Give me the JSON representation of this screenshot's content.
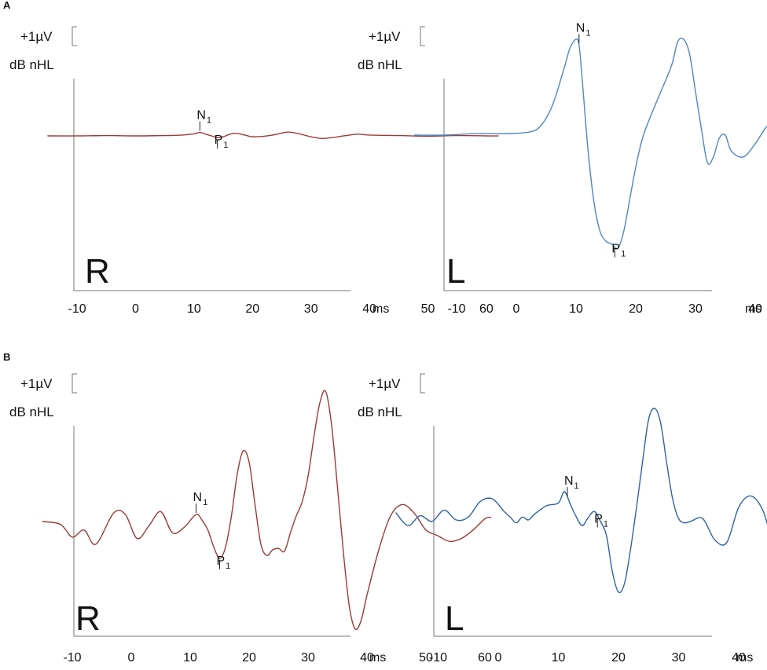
{
  "panel_labels": [
    "A",
    "B"
  ],
  "scale": {
    "amplitude": "+1µV",
    "level": "dB nHL"
  },
  "axis": {
    "ticks": [
      "-10",
      "0",
      "10",
      "20",
      "30",
      "40",
      "50",
      "60"
    ],
    "unit": "ms"
  },
  "colors": {
    "right_ear": "#9c3a36",
    "left_ear_A": "#4f86c6",
    "left_ear_B": "#2f62a8",
    "axis": "#777777"
  },
  "peaks": {
    "n_main": "N",
    "p_main": "P",
    "sub": "1"
  },
  "chart_data": [
    {
      "type": "line",
      "panel": "A",
      "ear": "R",
      "xlabel": "ms",
      "ylabel": "",
      "xlim": [
        -17,
        62
      ],
      "ylim": [
        -4.5,
        4.5
      ],
      "series": [
        {
          "ear": "R",
          "x": [
            -15,
            -10,
            -5,
            0,
            5,
            8,
            10,
            11,
            12,
            13,
            14,
            15,
            16,
            17,
            18,
            19,
            20,
            22,
            24,
            26,
            28,
            30,
            32,
            34,
            36,
            38,
            40,
            45,
            50,
            55,
            60,
            62
          ],
          "y": [
            0,
            0,
            0.02,
            0,
            0.02,
            0.05,
            0.12,
            0.2,
            0.1,
            0,
            -0.1,
            -0.05,
            0.08,
            0.15,
            0.1,
            0.02,
            -0.05,
            -0.02,
            0.08,
            0.22,
            0.12,
            -0.05,
            -0.15,
            -0.08,
            0.02,
            0.1,
            0.05,
            0.02,
            -0.02,
            0.02,
            0,
            0
          ]
        }
      ],
      "annotations": [
        {
          "label": "N",
          "sub": "1",
          "x": 11
        },
        {
          "label": "P",
          "sub": "1",
          "x": 14
        }
      ]
    },
    {
      "type": "line",
      "panel": "A",
      "ear": "L",
      "xlabel": "ms",
      "ylabel": "",
      "xlim": [
        -17,
        62
      ],
      "ylim": [
        -4.5,
        4.5
      ],
      "series": [
        {
          "ear": "L",
          "x": [
            -17,
            -12,
            -7,
            -2,
            2,
            4,
            6,
            8,
            9,
            10,
            10.5,
            11,
            12,
            13,
            14,
            15,
            16,
            17,
            18,
            19,
            20,
            21,
            22,
            24,
            26,
            27,
            28,
            29,
            30,
            31,
            32,
            33,
            34,
            35,
            36,
            38,
            40,
            42,
            44,
            46,
            48,
            50,
            52,
            55,
            58,
            60
          ],
          "y": [
            0,
            0,
            0.05,
            0.05,
            0.1,
            0.3,
            1.0,
            2.3,
            3.0,
            3.3,
            3.1,
            2.0,
            -0.5,
            -2.3,
            -3.3,
            -3.65,
            -3.75,
            -3.9,
            -3.3,
            -2.2,
            -1.1,
            -0.2,
            0.4,
            1.4,
            2.4,
            3.2,
            3.3,
            2.8,
            1.5,
            0.2,
            -0.95,
            -0.75,
            -0.1,
            0.0,
            -0.55,
            -0.75,
            -0.3,
            0.3,
            0.45,
            0.1,
            -0.05,
            0.2,
            0.25,
            0.25,
            0.1,
            0.1
          ]
        }
      ],
      "annotations": [
        {
          "label": "N",
          "sub": "1",
          "x": 10.5
        },
        {
          "label": "P",
          "sub": "1",
          "x": 16.5
        }
      ]
    },
    {
      "type": "line",
      "panel": "B",
      "ear": "R",
      "xlabel": "ms",
      "ylabel": "",
      "xlim": [
        -17,
        62
      ],
      "ylim": [
        -4.8,
        4.8
      ],
      "series": [
        {
          "ear": "R",
          "x": [
            -15,
            -12,
            -10,
            -8,
            -6,
            -3,
            -1,
            1,
            3,
            5,
            7,
            9,
            11,
            12,
            13,
            14,
            15,
            16,
            17,
            18,
            19,
            20,
            21,
            22,
            23,
            24,
            25,
            26,
            27,
            28,
            29,
            30,
            31,
            32,
            33,
            34,
            35,
            36,
            37,
            38,
            39,
            40,
            42,
            44,
            46,
            48,
            50,
            52,
            54,
            56,
            58,
            60,
            61
          ],
          "y": [
            0,
            -0.1,
            -0.55,
            -0.3,
            -0.8,
            0.3,
            0.25,
            -0.6,
            -0.15,
            0.35,
            -0.4,
            -0.2,
            0.25,
            0.05,
            -0.3,
            -0.9,
            -1.3,
            -0.9,
            0.2,
            1.7,
            2.5,
            2.1,
            0.6,
            -0.8,
            -1.2,
            -1.0,
            -0.95,
            -1.05,
            -0.4,
            0.2,
            0.7,
            1.6,
            3.0,
            4.2,
            4.6,
            3.4,
            1.2,
            -1.1,
            -3.0,
            -3.8,
            -3.5,
            -2.6,
            -1.0,
            0.2,
            0.6,
            0.3,
            -0.3,
            -0.5,
            -0.7,
            -0.6,
            -0.3,
            0.1,
            0.15
          ]
        }
      ],
      "annotations": [
        {
          "label": "N",
          "sub": "1",
          "x": 11
        },
        {
          "label": "P",
          "sub": "1",
          "x": 15
        }
      ]
    },
    {
      "type": "line",
      "panel": "B",
      "ear": "L",
      "xlabel": "ms",
      "ylabel": "",
      "xlim": [
        -17,
        62
      ],
      "ylim": [
        -4.8,
        4.8
      ],
      "series": [
        {
          "ear": "L",
          "x": [
            -17,
            -15,
            -13,
            -11,
            -9,
            -7,
            -5,
            -3,
            -1,
            1,
            2,
            3,
            4,
            5,
            6,
            8,
            10,
            11,
            12,
            13,
            14,
            15,
            16,
            17,
            18,
            19,
            20,
            21,
            22,
            23,
            24,
            25,
            26,
            27,
            28,
            29,
            30,
            31,
            32,
            34,
            36,
            38,
            40,
            42,
            44,
            46,
            48,
            50,
            52,
            54,
            56,
            58,
            59,
            60
          ],
          "y": [
            0,
            -0.45,
            -0.1,
            -0.3,
            0.1,
            -0.25,
            -0.15,
            0.4,
            0.5,
            0.05,
            -0.15,
            -0.35,
            -0.15,
            -0.25,
            -0.05,
            0.25,
            0.35,
            0.75,
            0.3,
            -0.15,
            -0.45,
            -0.15,
            0.05,
            -0.3,
            -0.8,
            -2.1,
            -2.8,
            -2.5,
            -1.3,
            0.2,
            1.8,
            3.3,
            3.7,
            3.2,
            1.8,
            0.5,
            -0.2,
            -0.35,
            -0.3,
            -0.2,
            -0.95,
            -1.05,
            0.2,
            0.6,
            0.1,
            -1.15,
            -0.9,
            0.1,
            0.55,
            0.3,
            -0.15,
            -0.1,
            0.05,
            0.2
          ]
        }
      ],
      "annotations": [
        {
          "label": "N",
          "sub": "1",
          "x": 11.5
        },
        {
          "label": "P",
          "sub": "1",
          "x": 16.5
        }
      ]
    }
  ]
}
